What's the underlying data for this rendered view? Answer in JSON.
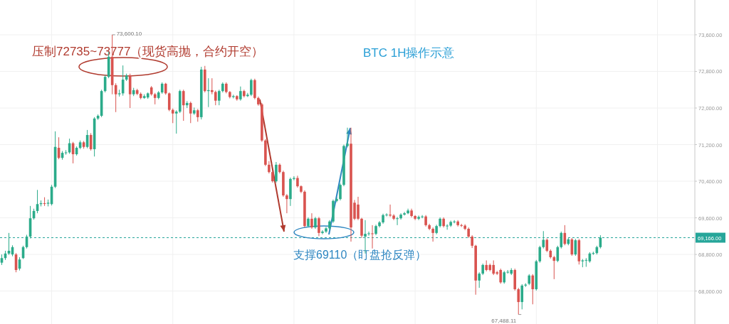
{
  "chart_data": {
    "type": "candlestick",
    "title": "BTC   1H操作示意",
    "categories": [
      null,
      null,
      null,
      null,
      null,
      null,
      null,
      null,
      null,
      null,
      null,
      null,
      null,
      null,
      null,
      null,
      null,
      null,
      null,
      null,
      null,
      null,
      null,
      null,
      null,
      null,
      null,
      null,
      null,
      null,
      null,
      null,
      null,
      null,
      null,
      null,
      null,
      null,
      null,
      null,
      null,
      null,
      null,
      null,
      null,
      null,
      null,
      null,
      null,
      null,
      null,
      null,
      null,
      null,
      null,
      null,
      null,
      null,
      null,
      null,
      null,
      null,
      null,
      null,
      null,
      null,
      null,
      null,
      null,
      null,
      null,
      null,
      null,
      null,
      null,
      null,
      null,
      null,
      null,
      null,
      null,
      null,
      null,
      null,
      null,
      null,
      null,
      null,
      null,
      null,
      null,
      null,
      null,
      null,
      null,
      null,
      null,
      null,
      null,
      null,
      null,
      null,
      null,
      null,
      null,
      null,
      null,
      null,
      null,
      null,
      null,
      null,
      null,
      null,
      null,
      null,
      null,
      null,
      null,
      null,
      null,
      null,
      null,
      null,
      null,
      null,
      null,
      null,
      null,
      null,
      null,
      null,
      null,
      null,
      null,
      null,
      null,
      null,
      null,
      null,
      null,
      null,
      null,
      null,
      null,
      null,
      null,
      null,
      null,
      null,
      null,
      null,
      null,
      null,
      null,
      null,
      null,
      null,
      null,
      null,
      null,
      null,
      null,
      null,
      null,
      null,
      null,
      null,
      null,
      null,
      null,
      null,
      null,
      null,
      null,
      null,
      null,
      null,
      null,
      null,
      null,
      null,
      null,
      null,
      null,
      null,
      null,
      null,
      null,
      null,
      null,
      null,
      null,
      null,
      null
    ],
    "ohlc": [
      [
        68620,
        68800,
        68570,
        68720
      ],
      [
        68720,
        68880,
        68680,
        68820
      ],
      [
        68820,
        69270,
        68790,
        68880
      ],
      [
        68800,
        69000,
        68760,
        68960
      ],
      [
        68800,
        68830,
        68410,
        68460
      ],
      [
        68490,
        68740,
        68450,
        68690
      ],
      [
        68720,
        68990,
        68700,
        68960
      ],
      [
        68960,
        69230,
        68930,
        69190
      ],
      [
        69190,
        69860,
        69150,
        69590
      ],
      [
        69590,
        69800,
        69560,
        69750
      ],
      [
        69750,
        70210,
        69700,
        69900
      ],
      [
        69900,
        69980,
        69850,
        69920
      ],
      [
        69920,
        70050,
        69860,
        69910
      ],
      [
        69910,
        70000,
        69850,
        69930
      ],
      [
        69900,
        70320,
        69870,
        70280
      ],
      [
        70280,
        71490,
        70250,
        71150
      ],
      [
        71130,
        71360,
        70880,
        70910
      ],
      [
        70910,
        71060,
        70870,
        71020
      ],
      [
        71020,
        71080,
        70980,
        71030
      ],
      [
        71030,
        71330,
        71000,
        71230
      ],
      [
        71230,
        71260,
        70790,
        70990
      ],
      [
        70990,
        71160,
        70960,
        71130
      ],
      [
        71130,
        71290,
        71100,
        71250
      ],
      [
        71250,
        71280,
        71110,
        71150
      ],
      [
        71150,
        71520,
        71120,
        71410
      ],
      [
        71410,
        71450,
        71070,
        71100
      ],
      [
        71100,
        71800,
        70940,
        71770
      ],
      [
        71770,
        71860,
        71740,
        71830
      ],
      [
        71830,
        72400,
        71800,
        72370
      ],
      [
        72370,
        72720,
        72340,
        72680
      ],
      [
        72680,
        73230,
        72650,
        73120
      ],
      [
        73120,
        73600.1,
        72300,
        72500
      ],
      [
        72500,
        72540,
        71910,
        72300
      ],
      [
        72300,
        72400,
        72250,
        72320
      ],
      [
        72320,
        72930,
        72270,
        72620
      ],
      [
        72620,
        72750,
        72590,
        72710
      ],
      [
        72710,
        72750,
        72000,
        72300
      ],
      [
        72300,
        72440,
        72260,
        72390
      ],
      [
        72390,
        72420,
        72280,
        72310
      ],
      [
        72310,
        72340,
        72190,
        72220
      ],
      [
        72220,
        72300,
        72200,
        72260
      ],
      [
        72230,
        72340,
        72200,
        72320
      ],
      [
        72450,
        72480,
        72270,
        72300
      ],
      [
        72300,
        72330,
        72080,
        72220
      ],
      [
        72220,
        72370,
        72190,
        72340
      ],
      [
        72340,
        72560,
        72310,
        72530
      ],
      [
        72530,
        72550,
        72290,
        72320
      ],
      [
        72320,
        72340,
        71930,
        71960
      ],
      [
        71960,
        71990,
        71670,
        71880
      ],
      [
        71880,
        71950,
        71440,
        71920
      ],
      [
        71920,
        72400,
        71890,
        72370
      ],
      [
        72370,
        72400,
        71720,
        72060
      ],
      [
        72060,
        72150,
        72000,
        72110
      ],
      [
        72110,
        72140,
        71670,
        71880
      ],
      [
        71880,
        72010,
        71850,
        71950
      ],
      [
        71950,
        71980,
        71700,
        71800
      ],
      [
        71800,
        72900,
        71750,
        72840
      ],
      [
        72840,
        72920,
        72340,
        72370
      ],
      [
        72370,
        72650,
        72020,
        72390
      ],
      [
        72390,
        72650,
        72300,
        72350
      ],
      [
        72350,
        72380,
        72060,
        72160
      ],
      [
        72160,
        72400,
        72060,
        72370
      ],
      [
        72370,
        72560,
        72340,
        72530
      ],
      [
        72530,
        72560,
        72320,
        72350
      ],
      [
        72350,
        72370,
        72210,
        72240
      ],
      [
        72240,
        72290,
        72210,
        72260
      ],
      [
        72260,
        72280,
        72160,
        72190
      ],
      [
        72190,
        72470,
        72160,
        72370
      ],
      [
        72370,
        72400,
        72230,
        72260
      ],
      [
        72260,
        72330,
        72240,
        72290
      ],
      [
        72290,
        72640,
        72260,
        72610
      ],
      [
        72610,
        72640,
        72190,
        72220
      ],
      [
        72220,
        72250,
        72050,
        72080
      ],
      [
        72080,
        72110,
        71260,
        71290
      ],
      [
        71290,
        71320,
        70730,
        70760
      ],
      [
        70760,
        70840,
        70570,
        70600
      ],
      [
        70600,
        70630,
        70370,
        70400
      ],
      [
        70400,
        70820,
        70370,
        70760
      ],
      [
        70760,
        70790,
        70570,
        70600
      ],
      [
        70600,
        70630,
        70060,
        70090
      ],
      [
        70090,
        70120,
        69700,
        70010
      ],
      [
        70010,
        70480,
        69860,
        70450
      ],
      [
        70450,
        70510,
        70420,
        70470
      ],
      [
        70470,
        70520,
        70260,
        70290
      ],
      [
        70290,
        70310,
        70140,
        70170
      ],
      [
        70170,
        70200,
        69390,
        69420
      ],
      [
        69420,
        69610,
        69390,
        69580
      ],
      [
        69580,
        69700,
        69360,
        69390
      ],
      [
        69390,
        69620,
        69360,
        69590
      ],
      [
        69590,
        69620,
        69200,
        69270
      ],
      [
        69270,
        69330,
        69240,
        69300
      ],
      [
        69300,
        69400,
        69270,
        69370
      ],
      [
        69370,
        69550,
        69340,
        69520
      ],
      [
        69520,
        70000,
        69490,
        69970
      ],
      [
        69970,
        70050,
        69940,
        70010
      ],
      [
        70010,
        70350,
        69980,
        70320
      ],
      [
        70320,
        71200,
        70290,
        71170
      ],
      [
        71170,
        71570,
        71140,
        71220
      ],
      [
        71220,
        71570,
        69080,
        69390
      ],
      [
        69930,
        69990,
        69550,
        69580
      ],
      [
        69890,
        70060,
        69550,
        69580
      ],
      [
        69580,
        69600,
        69160,
        69210
      ],
      [
        69190,
        69550,
        68820,
        69250
      ],
      [
        69250,
        69300,
        69210,
        69260
      ],
      [
        69260,
        69440,
        68930,
        69250
      ],
      [
        69250,
        69450,
        69220,
        69420
      ],
      [
        69420,
        69530,
        69390,
        69500
      ],
      [
        69500,
        69690,
        69470,
        69660
      ],
      [
        69660,
        69700,
        69630,
        69670
      ],
      [
        69670,
        69890,
        69620,
        69650
      ],
      [
        69650,
        69680,
        69550,
        69580
      ],
      [
        69580,
        69620,
        69440,
        69590
      ],
      [
        69590,
        69700,
        69560,
        69670
      ],
      [
        69670,
        69730,
        69650,
        69700
      ],
      [
        69700,
        69800,
        69680,
        69760
      ],
      [
        69760,
        69800,
        69610,
        69640
      ],
      [
        69640,
        69660,
        69550,
        69580
      ],
      [
        69580,
        69650,
        69550,
        69620
      ],
      [
        69620,
        69660,
        69590,
        69630
      ],
      [
        69630,
        69660,
        69410,
        69440
      ],
      [
        69440,
        69470,
        69330,
        69360
      ],
      [
        69360,
        69390,
        69080,
        69270
      ],
      [
        69270,
        69450,
        69240,
        69420
      ],
      [
        69420,
        69610,
        69390,
        69580
      ],
      [
        69580,
        69610,
        69390,
        69420
      ],
      [
        69420,
        69460,
        69340,
        69430
      ],
      [
        69430,
        69540,
        69400,
        69510
      ],
      [
        69510,
        69550,
        69480,
        69520
      ],
      [
        69520,
        69550,
        69410,
        69440
      ],
      [
        69440,
        69470,
        69400,
        69430
      ],
      [
        69430,
        69460,
        69330,
        69360
      ],
      [
        69360,
        69390,
        69160,
        69190
      ],
      [
        69190,
        69220,
        68940,
        68990
      ],
      [
        68990,
        69010,
        67920,
        68230
      ],
      [
        68230,
        68410,
        68070,
        68380
      ],
      [
        68380,
        68600,
        68350,
        68570
      ],
      [
        68570,
        68670,
        68430,
        68460
      ],
      [
        68570,
        68600,
        68430,
        68460
      ],
      [
        68570,
        68670,
        68350,
        68380
      ],
      [
        68410,
        68440,
        68350,
        68380
      ],
      [
        68460,
        68490,
        68160,
        68190
      ],
      [
        68190,
        68440,
        68160,
        68410
      ],
      [
        68410,
        68460,
        68380,
        68420
      ],
      [
        68380,
        68500,
        68350,
        68460
      ],
      [
        68460,
        68490,
        68010,
        68040
      ],
      [
        68040,
        68070,
        67488.11,
        67760
      ],
      [
        67760,
        68150,
        67600,
        68120
      ],
      [
        68120,
        68170,
        68090,
        68140
      ],
      [
        68160,
        68370,
        68130,
        68340
      ],
      [
        68340,
        68370,
        67710,
        68040
      ],
      [
        68040,
        68680,
        68010,
        68650
      ],
      [
        68650,
        68990,
        68620,
        68960
      ],
      [
        68960,
        69310,
        68930,
        69120
      ],
      [
        69120,
        69150,
        68850,
        68880
      ],
      [
        68880,
        68910,
        68710,
        68740
      ],
      [
        68740,
        68770,
        68260,
        68660
      ],
      [
        68660,
        68990,
        68630,
        68960
      ],
      [
        68960,
        69300,
        68930,
        69270
      ],
      [
        69270,
        69440,
        69000,
        69030
      ],
      [
        69030,
        69160,
        69000,
        69130
      ],
      [
        69130,
        69160,
        68770,
        68800
      ],
      [
        68800,
        69140,
        68770,
        69110
      ],
      [
        69110,
        69140,
        68580,
        68650
      ],
      [
        68650,
        68700,
        68520,
        68670
      ],
      [
        68670,
        68720,
        68530,
        68680
      ],
      [
        68650,
        68850,
        68620,
        68820
      ],
      [
        68820,
        68860,
        68790,
        68830
      ],
      [
        68830,
        68990,
        68800,
        68960
      ],
      [
        68960,
        69220,
        68930,
        69166
      ],
      null,
      null,
      null,
      null,
      null,
      null,
      null,
      null,
      null,
      null,
      null,
      null,
      null,
      null,
      null,
      null,
      null,
      null,
      null,
      null,
      null,
      null,
      null,
      null,
      null,
      null
    ],
    "ylim": [
      67280,
      74360
    ],
    "yticks": [
      {
        "value": 73600,
        "label": "73,600.00"
      },
      {
        "value": 72800,
        "label": "72,800.00"
      },
      {
        "value": 72000,
        "label": "72,000.00"
      },
      {
        "value": 71200,
        "label": "71,200.00"
      },
      {
        "value": 70400,
        "label": "70,400.00"
      },
      {
        "value": 69600,
        "label": "69,600.00"
      },
      {
        "value": 68800,
        "label": "68,800.00"
      },
      {
        "value": 68000,
        "label": "68,000.00"
      }
    ],
    "ref_lines": [
      {
        "axis": "y",
        "value": 69166,
        "label": "69,166.00",
        "color": "#26a69a",
        "line_style": "dashed"
      }
    ],
    "annotations": [
      "压制72735~73777（现货高抛，合约开空）",
      "支撑69110（盯盘抢反弹）",
      "73,600.10",
      "67,488.11"
    ],
    "grid": true,
    "tick_labels": "y"
  }
}
